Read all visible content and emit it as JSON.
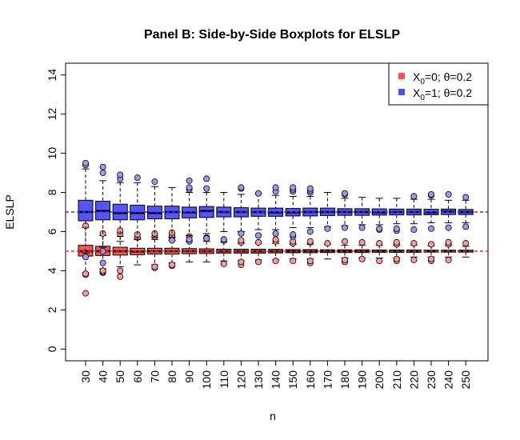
{
  "chart_data": {
    "type": "boxplot",
    "title": "Panel B: Side-by-Side Boxplots for ELSLP",
    "xlabel": "n",
    "ylabel": "ELSLP",
    "ylim": [
      -0.6,
      14.6
    ],
    "y_ticks": [
      0,
      2,
      4,
      6,
      8,
      10,
      12,
      14
    ],
    "categories": [
      "30",
      "40",
      "50",
      "60",
      "70",
      "80",
      "90",
      "100",
      "110",
      "120",
      "130",
      "140",
      "150",
      "160",
      "170",
      "180",
      "190",
      "200",
      "210",
      "220",
      "230",
      "240",
      "250"
    ],
    "reference_lines": [
      {
        "y": 7,
        "color": "#3333ff",
        "style": "dashed"
      },
      {
        "y": 5,
        "color": "#ff2222",
        "style": "dashed"
      }
    ],
    "legend": {
      "position": "top-right",
      "entries": [
        {
          "prefix": "X",
          "sub": "0",
          "suffix": "=0; θ=0.2",
          "color": "#ff4c4c"
        },
        {
          "prefix": "X",
          "sub": "0",
          "suffix": "=1; θ=0.2",
          "color": "#4c4cff"
        }
      ]
    },
    "series": [
      {
        "name": "X0=0; theta=0.2",
        "fill": "#ff5555",
        "outlier_fill": "#ff9999",
        "boxes": [
          {
            "n": "30",
            "whislo": 3.9,
            "q1": 4.75,
            "med": 5.0,
            "q3": 5.3,
            "whishi": 6.2,
            "outliers": [
              2.85,
              3.8,
              3.85,
              6.3
            ]
          },
          {
            "n": "40",
            "whislo": 4.1,
            "q1": 4.78,
            "med": 5.0,
            "q3": 5.25,
            "whishi": 5.8,
            "outliers": [
              3.9,
              3.95,
              4.0,
              5.9
            ]
          },
          {
            "n": "50",
            "whislo": 4.2,
            "q1": 4.8,
            "med": 5.0,
            "q3": 5.2,
            "whishi": 5.75,
            "outliers": [
              3.7,
              4.0,
              5.9,
              6.05
            ]
          },
          {
            "n": "60",
            "whislo": 4.3,
            "q1": 4.82,
            "med": 4.98,
            "q3": 5.15,
            "whishi": 5.65,
            "outliers": [
              5.7,
              5.85
            ]
          },
          {
            "n": "70",
            "whislo": 4.3,
            "q1": 4.85,
            "med": 5.0,
            "q3": 5.15,
            "whishi": 5.6,
            "outliers": [
              4.15,
              4.2,
              5.75,
              5.9
            ]
          },
          {
            "n": "80",
            "whislo": 4.4,
            "q1": 4.85,
            "med": 5.0,
            "q3": 5.15,
            "whishi": 5.55,
            "outliers": [
              4.25,
              4.3,
              5.7,
              5.8,
              5.95
            ]
          },
          {
            "n": "90",
            "whislo": 4.45,
            "q1": 4.87,
            "med": 5.0,
            "q3": 5.13,
            "whishi": 5.5,
            "outliers": [
              5.6,
              5.75
            ]
          },
          {
            "n": "100",
            "whislo": 4.45,
            "q1": 4.88,
            "med": 5.0,
            "q3": 5.12,
            "whishi": 5.5,
            "outliers": [
              5.65,
              5.7
            ]
          },
          {
            "n": "110",
            "whislo": 4.5,
            "q1": 4.9,
            "med": 5.0,
            "q3": 5.1,
            "whishi": 5.45,
            "outliers": [
              4.35,
              5.55
            ]
          },
          {
            "n": "120",
            "whislo": 4.5,
            "q1": 4.9,
            "med": 5.0,
            "q3": 5.1,
            "whishi": 5.4,
            "outliers": [
              4.3,
              4.45,
              5.45,
              5.55
            ]
          },
          {
            "n": "130",
            "whislo": 4.55,
            "q1": 4.9,
            "med": 5.0,
            "q3": 5.1,
            "whishi": 5.4,
            "outliers": [
              4.45,
              5.45
            ]
          },
          {
            "n": "140",
            "whislo": 4.55,
            "q1": 4.91,
            "med": 5.0,
            "q3": 5.09,
            "whishi": 5.4,
            "outliers": [
              4.5,
              5.5,
              5.6
            ]
          },
          {
            "n": "150",
            "whislo": 4.6,
            "q1": 4.92,
            "med": 5.0,
            "q3": 5.08,
            "whishi": 5.35,
            "outliers": [
              4.5,
              5.4,
              5.5
            ]
          },
          {
            "n": "160",
            "whislo": 4.6,
            "q1": 4.92,
            "med": 5.0,
            "q3": 5.08,
            "whishi": 5.35,
            "outliers": [
              4.4,
              4.5,
              5.45,
              5.5
            ]
          },
          {
            "n": "170",
            "whislo": 4.6,
            "q1": 4.93,
            "med": 5.0,
            "q3": 5.07,
            "whishi": 5.35,
            "outliers": [
              5.4
            ]
          },
          {
            "n": "180",
            "whislo": 4.65,
            "q1": 4.93,
            "med": 5.0,
            "q3": 5.07,
            "whishi": 5.3,
            "outliers": [
              4.45,
              4.55,
              5.5
            ]
          },
          {
            "n": "190",
            "whislo": 4.65,
            "q1": 4.93,
            "med": 5.0,
            "q3": 5.07,
            "whishi": 5.3,
            "outliers": [
              4.6,
              5.45
            ]
          },
          {
            "n": "200",
            "whislo": 4.65,
            "q1": 4.94,
            "med": 5.0,
            "q3": 5.06,
            "whishi": 5.3,
            "outliers": [
              4.5,
              5.4
            ]
          },
          {
            "n": "210",
            "whislo": 4.65,
            "q1": 4.94,
            "med": 5.0,
            "q3": 5.06,
            "whishi": 5.3,
            "outliers": [
              4.5,
              4.6,
              5.35,
              5.45
            ]
          },
          {
            "n": "220",
            "whislo": 4.7,
            "q1": 4.94,
            "med": 5.0,
            "q3": 5.06,
            "whishi": 5.3,
            "outliers": [
              4.55,
              5.4
            ]
          },
          {
            "n": "230",
            "whislo": 4.7,
            "q1": 4.95,
            "med": 5.0,
            "q3": 5.05,
            "whishi": 5.28,
            "outliers": [
              4.5,
              4.6,
              5.35
            ]
          },
          {
            "n": "240",
            "whislo": 4.7,
            "q1": 4.95,
            "med": 5.0,
            "q3": 5.05,
            "whishi": 5.28,
            "outliers": [
              4.55,
              5.35,
              5.45
            ]
          },
          {
            "n": "250",
            "whislo": 4.7,
            "q1": 4.95,
            "med": 5.0,
            "q3": 5.05,
            "whishi": 5.25,
            "outliers": [
              5.4
            ]
          }
        ]
      },
      {
        "name": "X0=1; theta=0.2",
        "fill": "#5555ff",
        "outlier_fill": "#9999ee",
        "boxes": [
          {
            "n": "30",
            "whislo": 4.9,
            "q1": 6.55,
            "med": 7.0,
            "q3": 7.6,
            "whishi": 9.2,
            "outliers": [
              4.7,
              9.4,
              9.5
            ]
          },
          {
            "n": "40",
            "whislo": 5.2,
            "q1": 6.6,
            "med": 7.05,
            "q3": 7.55,
            "whishi": 8.6,
            "outliers": [
              4.4,
              5.0,
              9.0,
              9.3
            ]
          },
          {
            "n": "50",
            "whislo": 5.5,
            "q1": 6.6,
            "med": 6.95,
            "q3": 7.4,
            "whishi": 8.5,
            "outliers": [
              8.7,
              8.9
            ]
          },
          {
            "n": "60",
            "whislo": 5.6,
            "q1": 6.6,
            "med": 6.95,
            "q3": 7.35,
            "whishi": 8.5,
            "outliers": [
              8.75
            ]
          },
          {
            "n": "70",
            "whislo": 5.7,
            "q1": 6.65,
            "med": 6.95,
            "q3": 7.3,
            "whishi": 8.3,
            "outliers": [
              8.55
            ]
          },
          {
            "n": "80",
            "whislo": 5.7,
            "q1": 6.65,
            "med": 7.0,
            "q3": 7.3,
            "whishi": 8.25,
            "outliers": [
              5.55
            ]
          },
          {
            "n": "90",
            "whislo": 5.8,
            "q1": 6.7,
            "med": 6.98,
            "q3": 7.25,
            "whishi": 8.0,
            "outliers": [
              5.5,
              5.6,
              8.15,
              8.25,
              8.6
            ]
          },
          {
            "n": "100",
            "whislo": 5.9,
            "q1": 6.72,
            "med": 7.05,
            "q3": 7.28,
            "whishi": 8.0,
            "outliers": [
              5.65,
              8.2,
              8.7
            ]
          },
          {
            "n": "110",
            "whislo": 6.0,
            "q1": 6.75,
            "med": 7.0,
            "q3": 7.25,
            "whishi": 8.0,
            "outliers": [
              5.6
            ]
          },
          {
            "n": "120",
            "whislo": 6.0,
            "q1": 6.75,
            "med": 7.0,
            "q3": 7.22,
            "whishi": 7.9,
            "outliers": [
              5.9,
              8.2,
              8.25
            ]
          },
          {
            "n": "130",
            "whislo": 6.1,
            "q1": 6.78,
            "med": 7.0,
            "q3": 7.2,
            "whishi": 7.95,
            "outliers": [
              5.8,
              7.95
            ]
          },
          {
            "n": "140",
            "whislo": 6.1,
            "q1": 6.78,
            "med": 6.98,
            "q3": 7.2,
            "whishi": 7.85,
            "outliers": [
              5.9,
              8.05,
              8.25
            ]
          },
          {
            "n": "150",
            "whislo": 6.2,
            "q1": 6.8,
            "med": 6.98,
            "q3": 7.18,
            "whishi": 7.8,
            "outliers": [
              5.75,
              5.85,
              8.05,
              8.15,
              8.25
            ]
          },
          {
            "n": "160",
            "whislo": 6.2,
            "q1": 6.8,
            "med": 7.0,
            "q3": 7.2,
            "whishi": 7.8,
            "outliers": [
              6.0,
              8.0,
              8.1,
              8.2
            ]
          },
          {
            "n": "170",
            "whislo": 6.25,
            "q1": 6.82,
            "med": 7.0,
            "q3": 7.2,
            "whishi": 8.0,
            "outliers": [
              6.15
            ]
          },
          {
            "n": "180",
            "whislo": 6.3,
            "q1": 6.83,
            "med": 7.0,
            "q3": 7.17,
            "whishi": 7.7,
            "outliers": [
              6.2,
              7.9,
              7.95
            ]
          },
          {
            "n": "190",
            "whislo": 6.35,
            "q1": 6.83,
            "med": 7.0,
            "q3": 7.17,
            "whishi": 7.75,
            "outliers": [
              6.2
            ]
          },
          {
            "n": "200",
            "whislo": 6.35,
            "q1": 6.84,
            "med": 6.98,
            "q3": 7.16,
            "whishi": 7.7,
            "outliers": [
              6.1,
              6.15
            ]
          },
          {
            "n": "210",
            "whislo": 6.4,
            "q1": 6.85,
            "med": 7.0,
            "q3": 7.15,
            "whishi": 7.7,
            "outliers": [
              6.05,
              6.15
            ]
          },
          {
            "n": "220",
            "whislo": 6.4,
            "q1": 6.85,
            "med": 7.0,
            "q3": 7.15,
            "whishi": 7.65,
            "outliers": [
              6.1,
              7.8
            ]
          },
          {
            "n": "230",
            "whislo": 6.45,
            "q1": 6.86,
            "med": 6.98,
            "q3": 7.14,
            "whishi": 7.65,
            "outliers": [
              6.15,
              7.85,
              7.9
            ]
          },
          {
            "n": "240",
            "whislo": 6.45,
            "q1": 6.87,
            "med": 7.02,
            "q3": 7.15,
            "whishi": 7.6,
            "outliers": [
              6.2,
              7.9
            ]
          },
          {
            "n": "250",
            "whislo": 6.45,
            "q1": 6.87,
            "med": 7.0,
            "q3": 7.13,
            "whishi": 7.6,
            "outliers": [
              6.25,
              7.75
            ]
          }
        ]
      }
    ]
  }
}
